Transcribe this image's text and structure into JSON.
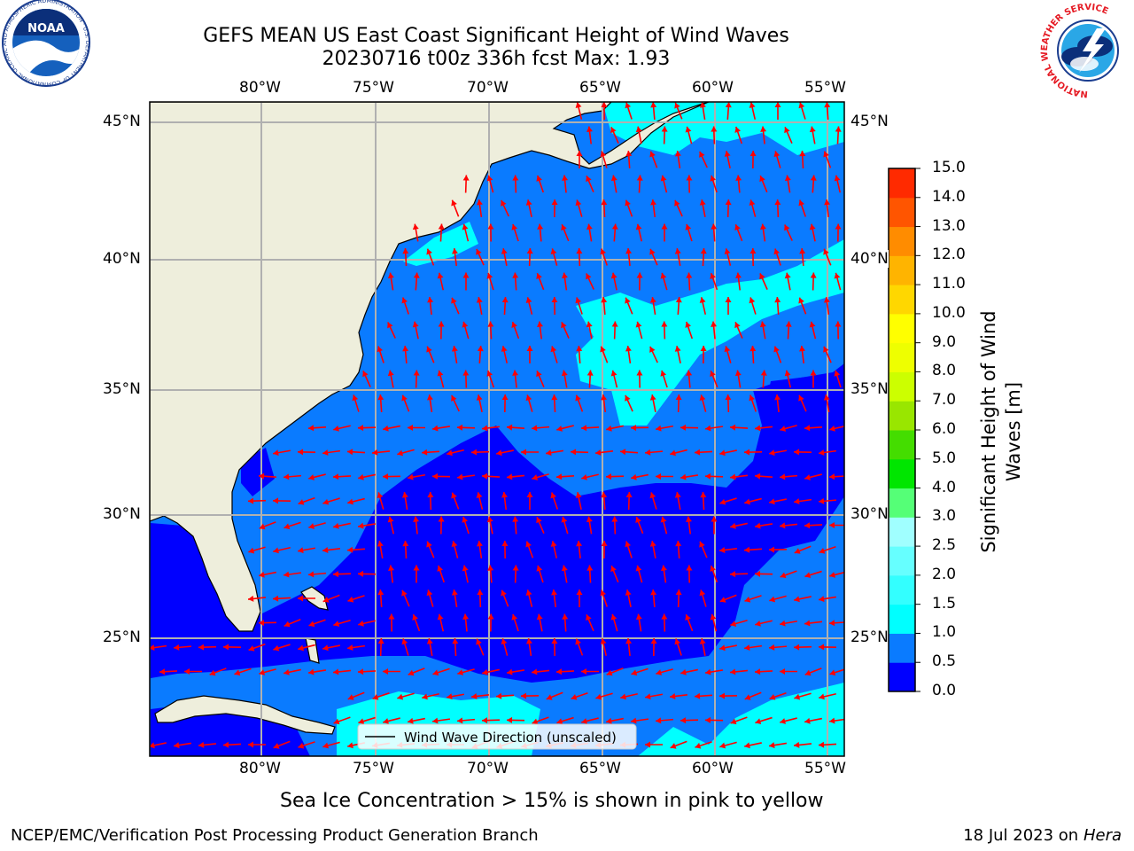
{
  "header": {
    "title_line1": "GEFS MEAN US East Coast Significant Height of Wind Waves",
    "title_line2": "20230716 t00z 336h fcst   Max: 1.93"
  },
  "logos": {
    "left_text": "NOAA",
    "left_ring": "NATIONAL OCEANIC AND ATMOSPHERIC ADMINISTRATION · U.S. DEPARTMENT OF COMMERCE",
    "right_ring": "NATIONAL WEATHER SERVICE"
  },
  "map": {
    "lon_labels": [
      "80°W",
      "75°W",
      "70°W",
      "65°W",
      "60°W",
      "55°W"
    ],
    "lat_labels": [
      "45°N",
      "40°N",
      "35°N",
      "30°N",
      "25°N"
    ],
    "lon_range": [
      -85,
      -54.2
    ],
    "lat_range": [
      20.5,
      45.8
    ],
    "gridlines": true,
    "colors": {
      "land": "#eeeedc",
      "h_0_0p5": "#0000ff",
      "h_0p5_1": "#0a7bff",
      "h_1_1p5": "#00ffff",
      "arrow": "#ff0000"
    },
    "legend": {
      "label": "Wind Wave Direction (unscaled)",
      "position": "lower center"
    }
  },
  "colorbar": {
    "label": "Significant Height of Wind Waves [m]",
    "label_line1": "Significant Height of Wind",
    "label_line2": "Waves [m]",
    "ticks": [
      "0.0",
      "0.5",
      "1.0",
      "1.5",
      "2.0",
      "2.5",
      "3.0",
      "4.0",
      "5.0",
      "6.0",
      "7.0",
      "8.0",
      "9.0",
      "10.0",
      "11.0",
      "12.0",
      "13.0",
      "14.0",
      "15.0"
    ],
    "colors": [
      "#0000ff",
      "#0a7bff",
      "#00ffff",
      "#33ffff",
      "#66ffff",
      "#a0ffff",
      "#55ff77",
      "#00e600",
      "#44dd00",
      "#99e600",
      "#ccff00",
      "#eeff00",
      "#ffff00",
      "#ffd700",
      "#ffb400",
      "#ff8c00",
      "#ff5500",
      "#ff2a00"
    ]
  },
  "footer": {
    "note": "Sea Ice Concentration > 15% is shown in pink to yellow",
    "credit": "NCEP/EMC/Verification Post Processing Product Generation Branch",
    "date_prefix": "18 Jul 2023 on",
    "date_machine": "Hera"
  }
}
